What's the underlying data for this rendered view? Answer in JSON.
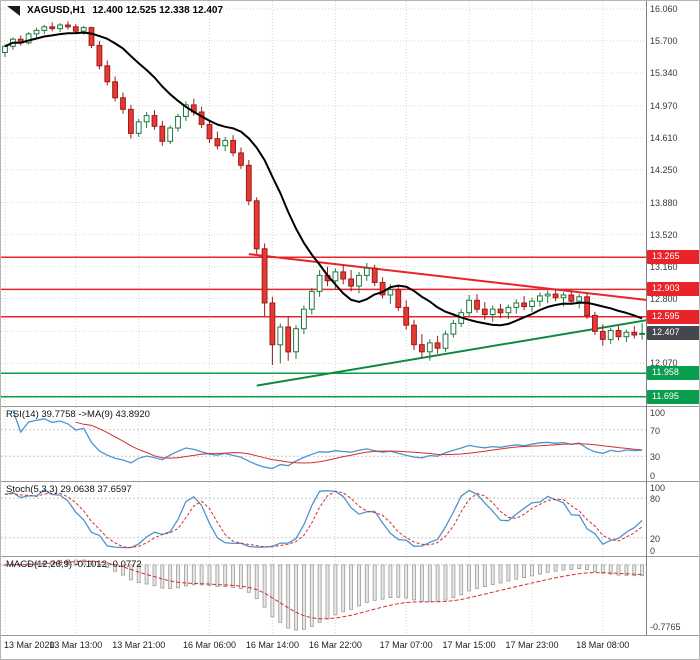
{
  "title": {
    "symbol_period": "XAGUSD,H1",
    "ohlc": "12.400 12.525 12.338 12.407",
    "icon": "one-click-trading-icon"
  },
  "colors": {
    "grid": "#d6d6d6",
    "up_fill": "#ffffff",
    "up_border": "#1f7a3f",
    "down_fill": "#e53935",
    "down_border": "#9e1b1b",
    "ma": "#000000",
    "resistance": "#e8242a",
    "support": "#089e4e",
    "trend_down": "#e8242a",
    "trend_up": "#0c8a3e",
    "rsi_line": "#4f94cd",
    "rsi_ma": "#d03030",
    "stoch_k": "#4f94cd",
    "stoch_d": "#d03030",
    "macd_hist_fill": "#e8e8e8",
    "macd_hist_stroke": "#9a9a9a",
    "macd_signal": "#d03030",
    "badge_current": "#44474e"
  },
  "chart_data": {
    "type": "candlestick",
    "symbol": "XAGUSD",
    "timeframe": "H1",
    "current": {
      "open": "12.400",
      "high": "12.525",
      "low": "12.338",
      "close": "12.407"
    },
    "price_axis": {
      "max": 16.15,
      "min": 11.59,
      "grid": [
        {
          "p": 16.06,
          "label": "16.060"
        },
        {
          "p": 15.7,
          "label": "15.700"
        },
        {
          "p": 15.34,
          "label": "15.340"
        },
        {
          "p": 14.97,
          "label": "14.970"
        },
        {
          "p": 14.61,
          "label": "14.610"
        },
        {
          "p": 14.25,
          "label": "14.250"
        },
        {
          "p": 13.88,
          "label": "13.880"
        },
        {
          "p": 13.52,
          "label": "13.520"
        },
        {
          "p": 13.16,
          "label": "13.160"
        },
        {
          "p": 12.8,
          "label": "12.800"
        },
        {
          "p": 12.43,
          "label": ""
        },
        {
          "p": 12.07,
          "label": "12.070"
        },
        {
          "p": 11.71,
          "label": ""
        }
      ],
      "badges": [
        {
          "price": 13.265,
          "label": "13.265",
          "color": "#e8242a",
          "name": "resistance-badge"
        },
        {
          "price": 12.903,
          "label": "12.903",
          "color": "#e8242a",
          "name": "resistance-badge"
        },
        {
          "price": 12.595,
          "label": "12.595",
          "color": "#e8242a",
          "name": "resistance-badge"
        },
        {
          "price": 12.407,
          "label": "12.407",
          "color": "#44474e",
          "name": "current-price-badge"
        },
        {
          "price": 11.958,
          "label": "11.958",
          "color": "#089e4e",
          "name": "support-badge"
        },
        {
          "price": 11.695,
          "label": "11.695",
          "color": "#089e4e",
          "name": "support-badge"
        }
      ]
    },
    "time_axis": {
      "labels": [
        {
          "i": 0,
          "t": "13 Mar 2020"
        },
        {
          "i": 9,
          "t": "13 Mar 13:00"
        },
        {
          "i": 17,
          "t": "13 Mar 21:00"
        },
        {
          "i": 26,
          "t": "16 Mar 06:00"
        },
        {
          "i": 34,
          "t": "16 Mar 14:00"
        },
        {
          "i": 42,
          "t": "16 Mar 22:00"
        },
        {
          "i": 51,
          "t": "17 Mar 07:00"
        },
        {
          "i": 59,
          "t": "17 Mar 15:00"
        },
        {
          "i": 67,
          "t": "17 Mar 23:00"
        },
        {
          "i": 76,
          "t": "18 Mar 08:00"
        }
      ]
    },
    "overlays": {
      "ma": {
        "type": "SMA",
        "period": 13,
        "color": "#000000"
      },
      "hlines": [
        {
          "price": 13.265,
          "color": "#e8242a",
          "name": "resistance-line-13265"
        },
        {
          "price": 12.903,
          "color": "#e8242a",
          "name": "resistance-line-12903"
        },
        {
          "price": 12.595,
          "color": "#e8242a",
          "name": "resistance-line-12595"
        },
        {
          "price": 11.958,
          "color": "#089e4e",
          "name": "support-line-11958"
        },
        {
          "price": 11.695,
          "color": "#089e4e",
          "name": "support-line-11695"
        }
      ],
      "trendlines": [
        {
          "name": "descending-trendline",
          "color": "#e8242a",
          "points": [
            [
              31,
              13.3
            ],
            [
              81.5,
              12.785
            ]
          ]
        },
        {
          "name": "ascending-trendline",
          "color": "#0c8a3e",
          "points": [
            [
              32,
              11.82
            ],
            [
              81.5,
              12.555
            ]
          ]
        }
      ]
    },
    "candles": [
      [
        15.57,
        15.66,
        15.52,
        15.64
      ],
      [
        15.64,
        15.74,
        15.6,
        15.72
      ],
      [
        15.72,
        15.76,
        15.65,
        15.68
      ],
      [
        15.68,
        15.8,
        15.66,
        15.78
      ],
      [
        15.78,
        15.85,
        15.74,
        15.82
      ],
      [
        15.82,
        15.88,
        15.78,
        15.86
      ],
      [
        15.86,
        15.91,
        15.81,
        15.84
      ],
      [
        15.84,
        15.9,
        15.8,
        15.88
      ],
      [
        15.88,
        15.92,
        15.83,
        15.86
      ],
      [
        15.86,
        15.89,
        15.78,
        15.81
      ],
      [
        15.81,
        15.87,
        15.77,
        15.85
      ],
      [
        15.85,
        15.86,
        15.62,
        15.65
      ],
      [
        15.65,
        15.7,
        15.38,
        15.42
      ],
      [
        15.42,
        15.48,
        15.2,
        15.24
      ],
      [
        15.24,
        15.3,
        15.02,
        15.06
      ],
      [
        15.06,
        15.12,
        14.88,
        14.93
      ],
      [
        14.93,
        14.98,
        14.6,
        14.66
      ],
      [
        14.66,
        14.82,
        14.62,
        14.79
      ],
      [
        14.79,
        14.9,
        14.72,
        14.86
      ],
      [
        14.86,
        14.92,
        14.7,
        14.74
      ],
      [
        14.74,
        14.8,
        14.52,
        14.57
      ],
      [
        14.57,
        14.75,
        14.54,
        14.72
      ],
      [
        14.72,
        14.88,
        14.68,
        14.85
      ],
      [
        14.85,
        15.02,
        14.8,
        14.98
      ],
      [
        14.98,
        15.05,
        14.86,
        14.9
      ],
      [
        14.9,
        14.96,
        14.72,
        14.76
      ],
      [
        14.76,
        14.8,
        14.55,
        14.6
      ],
      [
        14.6,
        14.68,
        14.48,
        14.52
      ],
      [
        14.52,
        14.62,
        14.46,
        14.58
      ],
      [
        14.58,
        14.64,
        14.4,
        14.44
      ],
      [
        14.44,
        14.5,
        14.26,
        14.3
      ],
      [
        14.3,
        14.36,
        13.85,
        13.9
      ],
      [
        13.9,
        13.94,
        13.3,
        13.36
      ],
      [
        13.36,
        13.42,
        12.6,
        12.75
      ],
      [
        12.75,
        12.82,
        12.05,
        12.28
      ],
      [
        12.28,
        12.52,
        12.07,
        12.48
      ],
      [
        12.48,
        12.6,
        12.1,
        12.2
      ],
      [
        12.2,
        12.5,
        12.12,
        12.46
      ],
      [
        12.46,
        12.72,
        12.4,
        12.68
      ],
      [
        12.68,
        12.92,
        12.62,
        12.88
      ],
      [
        12.88,
        13.12,
        12.82,
        13.06
      ],
      [
        13.06,
        13.16,
        12.94,
        13.0
      ],
      [
        13.0,
        13.14,
        12.9,
        13.1
      ],
      [
        13.1,
        13.18,
        12.96,
        13.02
      ],
      [
        13.02,
        13.12,
        12.88,
        12.94
      ],
      [
        12.94,
        13.1,
        12.86,
        13.06
      ],
      [
        13.06,
        13.2,
        13.0,
        13.14
      ],
      [
        13.14,
        13.18,
        12.94,
        12.98
      ],
      [
        12.98,
        13.04,
        12.8,
        12.84
      ],
      [
        12.84,
        12.96,
        12.74,
        12.9
      ],
      [
        12.9,
        12.95,
        12.66,
        12.7
      ],
      [
        12.7,
        12.78,
        12.45,
        12.5
      ],
      [
        12.5,
        12.56,
        12.22,
        12.28
      ],
      [
        12.28,
        12.4,
        12.13,
        12.2
      ],
      [
        12.2,
        12.34,
        12.1,
        12.3
      ],
      [
        12.3,
        12.38,
        12.18,
        12.24
      ],
      [
        12.24,
        12.44,
        12.2,
        12.4
      ],
      [
        12.4,
        12.56,
        12.36,
        12.52
      ],
      [
        12.52,
        12.68,
        12.48,
        12.64
      ],
      [
        12.64,
        12.84,
        12.6,
        12.78
      ],
      [
        12.78,
        12.85,
        12.64,
        12.68
      ],
      [
        12.68,
        12.76,
        12.56,
        12.62
      ],
      [
        12.62,
        12.72,
        12.54,
        12.68
      ],
      [
        12.68,
        12.74,
        12.58,
        12.64
      ],
      [
        12.64,
        12.73,
        12.57,
        12.7
      ],
      [
        12.7,
        12.79,
        12.63,
        12.75
      ],
      [
        12.75,
        12.83,
        12.67,
        12.71
      ],
      [
        12.71,
        12.81,
        12.65,
        12.77
      ],
      [
        12.77,
        12.87,
        12.71,
        12.83
      ],
      [
        12.83,
        12.89,
        12.75,
        12.85
      ],
      [
        12.85,
        12.91,
        12.77,
        12.81
      ],
      [
        12.81,
        12.87,
        12.71,
        12.84
      ],
      [
        12.84,
        12.89,
        12.73,
        12.77
      ],
      [
        12.77,
        12.85,
        12.69,
        12.82
      ],
      [
        12.82,
        12.86,
        12.57,
        12.61
      ],
      [
        12.61,
        12.65,
        12.39,
        12.43
      ],
      [
        12.43,
        12.51,
        12.27,
        12.34
      ],
      [
        12.34,
        12.47,
        12.29,
        12.44
      ],
      [
        12.44,
        12.49,
        12.33,
        12.37
      ],
      [
        12.37,
        12.45,
        12.31,
        12.42
      ],
      [
        12.42,
        12.49,
        12.35,
        12.39
      ],
      [
        12.4,
        12.525,
        12.338,
        12.407
      ]
    ],
    "panels": [
      {
        "id": "rsi",
        "label": "RSI(14) 39.7758  ->MA(9) 43.8920",
        "params": {
          "period": 14,
          "ma_period": 9
        },
        "range": [
          0,
          100
        ],
        "levels": [
          70,
          30
        ],
        "axis_values": [
          100,
          70,
          30,
          0
        ],
        "axis_labels": [
          "100",
          "70",
          "30",
          "0"
        ]
      },
      {
        "id": "stoch",
        "label": "Stoch(5,3,3) 29.0638 37.6597",
        "params": {
          "k": 5,
          "slowing": 3,
          "d": 3
        },
        "range": [
          0,
          100
        ],
        "levels": [
          80,
          20
        ],
        "axis_values": [
          100,
          80,
          20,
          0
        ],
        "axis_labels": [
          "100",
          "80",
          "20",
          "0"
        ]
      },
      {
        "id": "macd",
        "label": "MACD(12,26,9) -0.1012 -0.0772",
        "params": {
          "fast": 12,
          "slow": 26,
          "signal": 9
        },
        "axis_label_bottom": "-0.7765"
      }
    ]
  }
}
